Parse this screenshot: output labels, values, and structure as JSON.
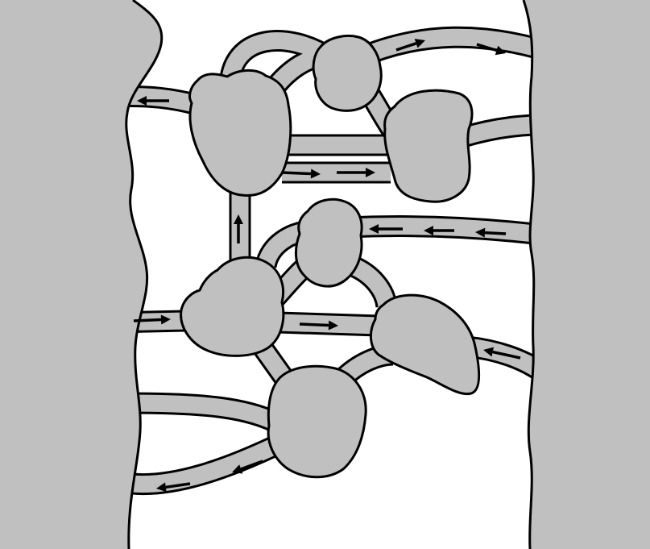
{
  "colors": {
    "fill": "#c0c0c0",
    "stroke": "#000000",
    "background": "#ffffff"
  },
  "diagram": {
    "left_region": "tissue",
    "right_region": "tissue",
    "nodes": [
      "node-a",
      "node-b",
      "node-c",
      "node-d",
      "node-e",
      "node-f",
      "node-g",
      "node-h"
    ],
    "vessels": [
      "node-a-to-left",
      "node-b-to-right-top",
      "node-c-to-right",
      "node-a-to-node-b",
      "node-a-to-node-b-arc",
      "node-b-to-node-c",
      "node-a-to-node-c-upper",
      "node-a-to-node-c-lower",
      "node-e-to-node-a",
      "node-d-to-right",
      "node-d-to-node-e-curve",
      "node-e-to-node-d",
      "node-d-to-node-f",
      "left-to-node-e",
      "node-e-to-node-f",
      "node-f-to-right",
      "node-e-to-node-g",
      "node-g-to-node-f",
      "left-to-node-g",
      "node-g-to-left-bottom"
    ],
    "arrows": [
      "left",
      "right",
      "right",
      "right",
      "right",
      "up",
      "left",
      "left",
      "left",
      "right",
      "right",
      "left",
      "left",
      "left"
    ]
  }
}
